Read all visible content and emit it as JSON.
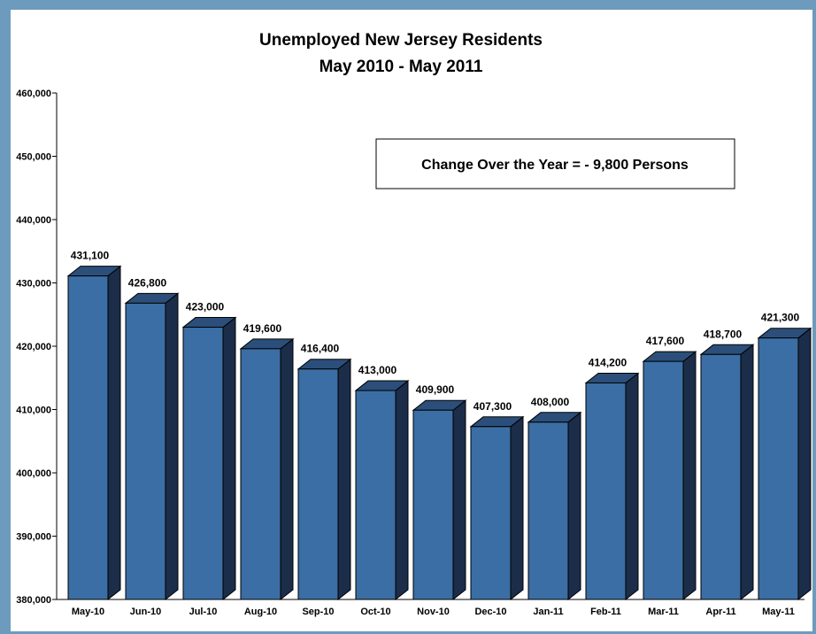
{
  "chart_data": {
    "type": "bar",
    "title": "Unemployed New Jersey Residents",
    "subtitle": "May 2010 - May 2011",
    "xlabel": "",
    "ylabel": "",
    "categories": [
      "May-10",
      "Jun-10",
      "Jul-10",
      "Aug-10",
      "Sep-10",
      "Oct-10",
      "Nov-10",
      "Dec-10",
      "Jan-11",
      "Feb-11",
      "Mar-11",
      "Apr-11",
      "May-11"
    ],
    "values": [
      431100,
      426800,
      423000,
      419600,
      416400,
      413000,
      409900,
      407300,
      408000,
      414200,
      417600,
      418700,
      421300
    ],
    "value_labels": [
      "431,100",
      "426,800",
      "423,000",
      "419,600",
      "416,400",
      "413,000",
      "409,900",
      "407,300",
      "408,000",
      "414,200",
      "417,600",
      "418,700",
      "421,300"
    ],
    "ylim": [
      380000,
      460000
    ],
    "yticks": [
      380000,
      390000,
      400000,
      410000,
      420000,
      430000,
      440000,
      450000,
      460000
    ],
    "ytick_labels": [
      "380,000",
      "390,000",
      "400,000",
      "410,000",
      "420,000",
      "430,000",
      "440,000",
      "450,000",
      "460,000"
    ],
    "annotation": "Change Over the Year = - 9,800 Persons",
    "grid": false,
    "legend": "none",
    "style": "3d",
    "colors": {
      "bar_front": "#3a6ea5",
      "bar_top": "#2b4f7a",
      "bar_side": "#1c2d4a",
      "frame_bg": "#6d9bbd"
    }
  }
}
